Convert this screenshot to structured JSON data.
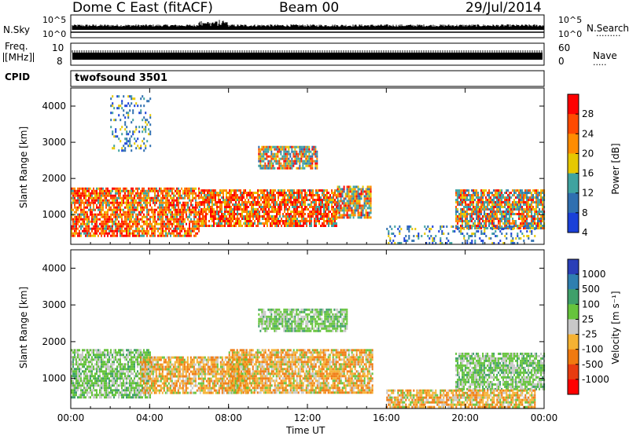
{
  "header": {
    "station": "Dome C East (fitACF)",
    "beam": "Beam 00",
    "date": "29/Jul/2014"
  },
  "top_panels": {
    "nsky_label": "N.Sky",
    "nsky_ticks": [
      "10^5",
      "10^0"
    ],
    "nsearch_label": "N.Search",
    "nsearch_ticks": [
      "10^5",
      "10^0"
    ],
    "freq_label_1": "Freq.",
    "freq_label_2": "[MHz]",
    "freq_ticks": [
      "10",
      "8"
    ],
    "nave_label": "Nave",
    "nave_ticks": [
      "60",
      "0"
    ],
    "cpid_label": "CPID",
    "cpid_value": "twofsound 3501"
  },
  "power_colorbar": {
    "title": "Power [dB]",
    "ticks": [
      "28",
      "24",
      "20",
      "16",
      "12",
      "8",
      "4"
    ],
    "colors": [
      "#ff0000",
      "#ff4a00",
      "#ff8c00",
      "#e6c800",
      "#3fa3a0",
      "#2f6fb0",
      "#1a40d8"
    ]
  },
  "velocity_colorbar": {
    "title": "Velocity",
    "unit": "[m s⁻¹]",
    "ticks": [
      "1000",
      "500",
      "100",
      "25",
      "-25",
      "-100",
      "-500",
      "-1000"
    ],
    "colors": [
      "#2a3fb8",
      "#2f7fb0",
      "#3fa06a",
      "#66c43c",
      "#c8c8c8",
      "#f5b233",
      "#f07a10",
      "#e83c10",
      "#ff0000"
    ]
  },
  "chart_data": {
    "type": "heatmap",
    "title": "Dome C East (fitACF)",
    "xlabel": "Time UT",
    "ylabel": "Slant Range [km]",
    "x_tick_labels": [
      "00:00",
      "04:00",
      "08:00",
      "12:00",
      "16:00",
      "20:00",
      "00:00"
    ],
    "x_hours": [
      0,
      4,
      8,
      12,
      16,
      20,
      24
    ],
    "y_ticks": [
      1000,
      2000,
      3000,
      4000
    ],
    "ylim": [
      180,
      4500
    ],
    "panels": [
      {
        "name": "Power",
        "colorbar_title": "Power [dB]",
        "regions": [
          {
            "t_start": 0.0,
            "t_end": 6.5,
            "r_min": 400,
            "r_max": 1750,
            "level": "high"
          },
          {
            "t_start": 6.5,
            "t_end": 13.5,
            "r_min": 700,
            "r_max": 1700,
            "level": "high"
          },
          {
            "t_start": 13.5,
            "t_end": 15.2,
            "r_min": 900,
            "r_max": 1800,
            "level": "mid"
          },
          {
            "t_start": 9.5,
            "t_end": 12.5,
            "r_min": 2300,
            "r_max": 2900,
            "level": "mid"
          },
          {
            "t_start": 2.0,
            "t_end": 4.0,
            "r_min": 2800,
            "r_max": 4300,
            "level": "low"
          },
          {
            "t_start": 19.5,
            "t_end": 24.0,
            "r_min": 600,
            "r_max": 1700,
            "level": "mid"
          },
          {
            "t_start": 16.0,
            "t_end": 23.5,
            "r_min": 200,
            "r_max": 700,
            "level": "low"
          }
        ]
      },
      {
        "name": "Velocity",
        "colorbar_title": "Velocity [m s⁻¹]",
        "regions": [
          {
            "t_start": 0.0,
            "t_end": 4.0,
            "r_min": 500,
            "r_max": 1800,
            "level": "green"
          },
          {
            "t_start": 3.5,
            "t_end": 9.0,
            "r_min": 600,
            "r_max": 1600,
            "level": "orange"
          },
          {
            "t_start": 8.0,
            "t_end": 15.3,
            "r_min": 600,
            "r_max": 1800,
            "level": "orange"
          },
          {
            "t_start": 9.5,
            "t_end": 14.0,
            "r_min": 2300,
            "r_max": 2900,
            "level": "green"
          },
          {
            "t_start": 19.5,
            "t_end": 24.0,
            "r_min": 700,
            "r_max": 1700,
            "level": "green"
          },
          {
            "t_start": 16.0,
            "t_end": 23.5,
            "r_min": 200,
            "r_max": 700,
            "level": "orange"
          }
        ]
      }
    ]
  }
}
